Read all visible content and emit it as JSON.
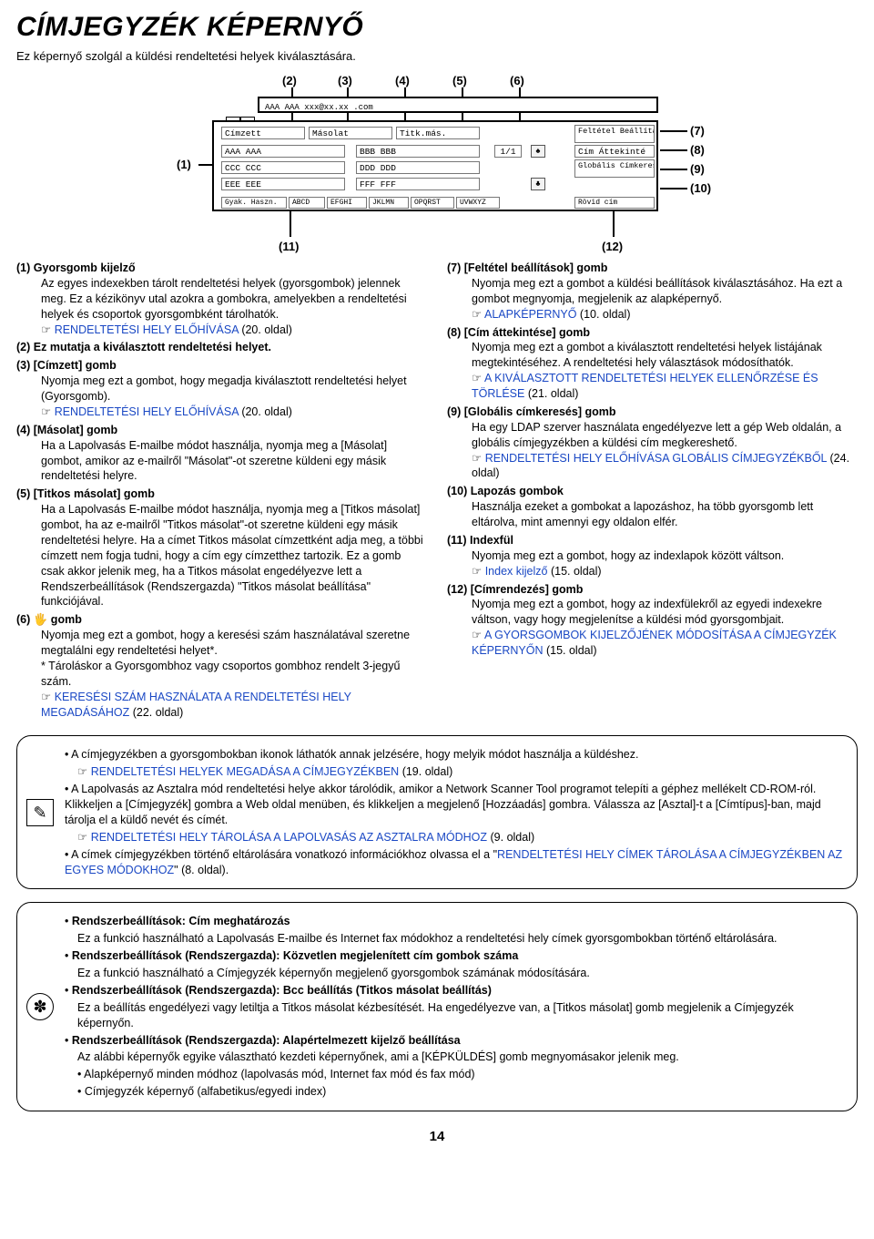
{
  "title": "CÍMJEGYZÉK KÉPERNYŐ",
  "subtitle": "Ez képernyő szolgál a küldési rendeltetési helyek kiválasztására.",
  "page_number": "14",
  "colors": {
    "link": "#1a48c4",
    "text": "#000000",
    "bg": "#ffffff"
  },
  "diagram": {
    "topnums": [
      "(2)",
      "(3)",
      "(4)",
      "(5)",
      "(6)"
    ],
    "left_num": "(1)",
    "right_nums": [
      "(7)",
      "(8)",
      "(9)",
      "(10)"
    ],
    "bottom_left": "(11)",
    "bottom_right": "(12)",
    "topbar_text": "AAA AAA  xxx@xx.xx .com",
    "row1": {
      "c1": "Címzett",
      "c2": "Másolat",
      "c3": "Titk.más.",
      "r1": "Feltétel Beállítások"
    },
    "row2": {
      "c1": "AAA AAA",
      "c2": "BBB BBB",
      "pg": "1/1",
      "r1": "Cím Áttekinté"
    },
    "row3": {
      "c1": "CCC CCC",
      "c2": "DDD DDD",
      "r1": "Globális Címkeresés"
    },
    "row4": {
      "c1": "EEE EEE",
      "c2": "FFF FFF"
    },
    "idx": [
      "Gyak. Haszn.",
      "ABCD",
      "EFGHI",
      "JKLMN",
      "OPQRST",
      "UVWXYZ",
      "Rövid cím"
    ]
  },
  "left_items": [
    {
      "n": "(1)",
      "t": "Gyorsgomb kijelző",
      "body": [
        {
          "txt": "Az egyes indexekben tárolt rendeltetési helyek (gyorsgombok) jelennek meg. Ez a kézikönyv utal azokra a gombokra, amelyekben a rendeltetési helyek és csoportok gyorsgombként tárolhatók."
        },
        {
          "ptr": true,
          "link": "RENDELTETÉSI HELY ELŐHÍVÁSA",
          "tail": " (20. oldal)"
        }
      ]
    },
    {
      "n": "(2)",
      "t": "Ez mutatja a kiválasztott rendeltetési helyet.",
      "body": []
    },
    {
      "n": "(3)",
      "t": "[Címzett] gomb",
      "body": [
        {
          "txt": "Nyomja meg ezt a gombot, hogy megadja kiválasztott rendeltetési helyet (Gyorsgomb)."
        },
        {
          "ptr": true,
          "link": "RENDELTETÉSI HELY ELŐHÍVÁSA",
          "tail": " (20. oldal)"
        }
      ]
    },
    {
      "n": "(4)",
      "t": "[Másolat] gomb",
      "body": [
        {
          "txt": "Ha a Lapolvasás E-mailbe módot használja, nyomja meg a [Másolat] gombot, amikor az e-mailről \"Másolat\"-ot szeretne küldeni egy másik rendeltetési helyre."
        }
      ]
    },
    {
      "n": "(5)",
      "t": "[Titkos másolat] gomb",
      "body": [
        {
          "txt": "Ha a Lapolvasás E-mailbe módot használja, nyomja meg a [Titkos másolat] gombot, ha az e-mailről \"Titkos másolat\"-ot szeretne küldeni egy másik rendeltetési helyre. Ha a címet Titkos másolat címzettként adja meg, a többi címzett nem fogja tudni, hogy a cím egy címzetthez tartozik. Ez a gomb csak akkor jelenik meg, ha a Titkos másolat engedélyezve lett a Rendszerbeállítások (Rendszergazda) \"Titkos másolat beállítása\" funkciójával."
        }
      ]
    },
    {
      "n": "(6)",
      "t": "🖐 gomb",
      "body": [
        {
          "txt": "Nyomja meg ezt a gombot, hogy a keresési szám használatával szeretne megtalálni egy rendeltetési helyet*."
        },
        {
          "txt": "* Tároláskor a Gyorsgombhoz vagy csoportos gombhoz rendelt 3-jegyű szám."
        },
        {
          "ptr": true,
          "link": "KERESÉSI SZÁM HASZNÁLATA A RENDELTETÉSI HELY MEGADÁSÁHOZ",
          "tail": " (22. oldal)"
        }
      ]
    }
  ],
  "right_items": [
    {
      "n": "(7)",
      "t": "[Feltétel beállítások] gomb",
      "body": [
        {
          "txt": "Nyomja meg ezt a gombot a küldési beállítások kiválasztásához. Ha ezt a gombot megnyomja, megjelenik az alapképernyő."
        },
        {
          "ptr": true,
          "link": "ALAPKÉPERNYŐ",
          "tail": " (10. oldal)"
        }
      ]
    },
    {
      "n": "(8)",
      "t": "[Cím áttekintése] gomb",
      "body": [
        {
          "txt": "Nyomja meg ezt a gombot a kiválasztott rendeltetési helyek listájának megtekintéséhez. A rendeltetési hely választások módosíthatók."
        },
        {
          "ptr": true,
          "link": "A KIVÁLASZTOTT RENDELTETÉSI HELYEK ELLENŐRZÉSE ÉS TÖRLÉSE",
          "tail": " (21. oldal)"
        }
      ]
    },
    {
      "n": "(9)",
      "t": "[Globális címkeresés] gomb",
      "body": [
        {
          "txt": "Ha egy LDAP szerver használata engedélyezve lett a gép Web oldalán, a globális címjegyzékben a küldési cím megkereshető."
        },
        {
          "ptr": true,
          "link": "RENDELTETÉSI HELY ELŐHÍVÁSA GLOBÁLIS CÍMJEGYZÉKBŐL",
          "tail": " (24. oldal)"
        }
      ]
    },
    {
      "n": "(10)",
      "t": "Lapozás gombok",
      "body": [
        {
          "txt": "Használja ezeket a gombokat a lapozáshoz, ha több gyorsgomb lett eltárolva, mint amennyi egy oldalon elfér."
        }
      ]
    },
    {
      "n": "(11)",
      "t": "Indexfül",
      "body": [
        {
          "txt": "Nyomja meg ezt a gombot, hogy az indexlapok között váltson."
        },
        {
          "ptr": true,
          "link": "Index kijelző",
          "tail": " (15. oldal)"
        }
      ]
    },
    {
      "n": "(12)",
      "t": "[Címrendezés] gomb",
      "body": [
        {
          "txt": "Nyomja meg ezt a gombot, hogy az indexfülekről az egyedi indexekre váltson, vagy hogy megjelenítse a küldési mód gyorsgombjait."
        },
        {
          "ptr": true,
          "link": "A GYORSGOMBOK KIJELZŐJÉNEK MÓDOSÍTÁSA A CÍMJEGYZÉK KÉPERNYŐN",
          "tail": " (15. oldal)"
        }
      ]
    }
  ],
  "box1": [
    {
      "type": "bullet",
      "txt": "A címjegyzékben a gyorsgombokban ikonok láthatók annak jelzésére, hogy melyik módot használja a küldéshez."
    },
    {
      "type": "ptr",
      "link": "RENDELTETÉSI HELYEK MEGADÁSA A CÍMJEGYZÉKBEN",
      "tail": " (19. oldal)"
    },
    {
      "type": "bullet",
      "txt": "A Lapolvasás az Asztalra mód rendeltetési helye akkor tárolódik, amikor a Network Scanner Tool programot telepíti a géphez mellékelt CD-ROM-ról. Klikkeljen a [Címjegyzék] gombra a Web oldal menüben, és klikkeljen a megjelenő [Hozzáadás] gombra. Válassza az [Asztal]-t a [Címtípus]-ban, majd tárolja el a küldő nevét és címét."
    },
    {
      "type": "ptr",
      "link": "RENDELTETÉSI HELY TÁROLÁSA A LAPOLVASÁS AZ ASZTALRA MÓDHOZ",
      "tail": " (9. oldal)"
    },
    {
      "type": "bullet",
      "txtpre": "A címek címjegyzékben történő eltárolására vonatkozó információkhoz olvassa el a \"",
      "link": "RENDELTETÉSI HELY CÍMEK TÁROLÁSA A CÍMJEGYZÉKBEN AZ EGYES MÓDOKHOZ",
      "tail": "\" (8. oldal)."
    }
  ],
  "box2": [
    {
      "type": "hdr",
      "txt": "Rendszerbeállítások: Cím meghatározás"
    },
    {
      "type": "sub",
      "txt": "Ez a funkció használható a Lapolvasás E-mailbe és Internet fax módokhoz a rendeltetési hely címek gyorsgombokban történő eltárolására."
    },
    {
      "type": "hdr",
      "txt": "Rendszerbeállítások (Rendszergazda): Közvetlen megjelenített cím gombok száma"
    },
    {
      "type": "sub",
      "txt": "Ez a funkció használható a Címjegyzék képernyőn megjelenő gyorsgombok számának módosítására."
    },
    {
      "type": "hdr",
      "txt": "Rendszerbeállítások (Rendszergazda): Bcc beállítás (Titkos másolat beállítás)"
    },
    {
      "type": "sub",
      "txt": "Ez a beállítás engedélyezi vagy letiltja a Titkos másolat kézbesítését. Ha engedélyezve van, a [Titkos másolat] gomb megjelenik a Címjegyzék képernyőn."
    },
    {
      "type": "hdr",
      "txt": "Rendszerbeállítások (Rendszergazda): Alapértelmezett kijelző beállítása"
    },
    {
      "type": "sub",
      "txt": "Az alábbi képernyők egyike választható kezdeti képernyőnek, ami a [KÉPKÜLDÉS] gomb megnyomásakor jelenik meg."
    },
    {
      "type": "li",
      "txt": "Alapképernyő minden módhoz (lapolvasás mód, Internet fax mód és fax mód)"
    },
    {
      "type": "li",
      "txt": "Címjegyzék képernyő (alfabetikus/egyedi index)"
    }
  ]
}
